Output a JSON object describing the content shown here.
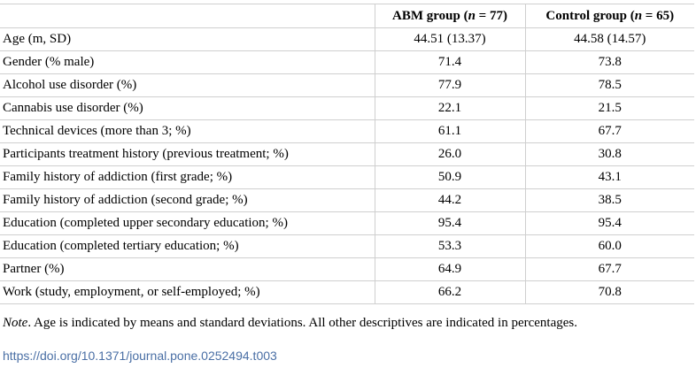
{
  "table": {
    "headers": {
      "label": "",
      "abm": {
        "prefix": "ABM group (",
        "n_symbol": "n",
        "suffix": " = 77)"
      },
      "control": {
        "prefix": "Control group (",
        "n_symbol": "n",
        "suffix": " = 65)"
      }
    },
    "rows": [
      {
        "label": "Age (m, SD)",
        "abm": "44.51 (13.37)",
        "control": "44.58 (14.57)"
      },
      {
        "label": "Gender (% male)",
        "abm": "71.4",
        "control": "73.8"
      },
      {
        "label": "Alcohol use disorder (%)",
        "abm": "77.9",
        "control": "78.5"
      },
      {
        "label": "Cannabis use disorder (%)",
        "abm": "22.1",
        "control": "21.5"
      },
      {
        "label": "Technical devices (more than 3; %)",
        "abm": "61.1",
        "control": "67.7"
      },
      {
        "label": "Participants treatment history (previous treatment; %)",
        "abm": "26.0",
        "control": "30.8"
      },
      {
        "label": "Family history of addiction (first grade; %)",
        "abm": "50.9",
        "control": "43.1"
      },
      {
        "label": "Family history of addiction (second grade; %)",
        "abm": "44.2",
        "control": "38.5"
      },
      {
        "label": "Education (completed upper secondary education; %)",
        "abm": "95.4",
        "control": "95.4"
      },
      {
        "label": "Education (completed tertiary education; %)",
        "abm": "53.3",
        "control": "60.0"
      },
      {
        "label": "Partner (%)",
        "abm": "64.9",
        "control": "67.7"
      },
      {
        "label": "Work (study, employment, or self-employed; %)",
        "abm": "66.2",
        "control": "70.8"
      }
    ]
  },
  "note": {
    "label": "Note",
    "text": ". Age is indicated by means and standard deviations. All other descriptives are indicated in percentages."
  },
  "doi": "https://doi.org/10.1371/journal.pone.0252494.t003"
}
